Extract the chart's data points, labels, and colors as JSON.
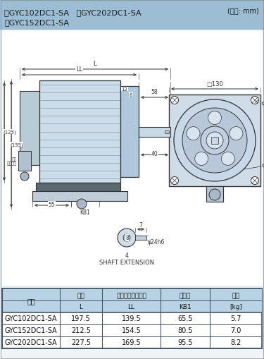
{
  "title_models_line1": "・GYC102DC1-SA   ・GYC202DC1-SA",
  "title_models_line2": "・GYC152DC1-SA",
  "unit_label": "(単位: mm)",
  "title_bg": "#9dbdd4",
  "header_bg": "#b8d4e4",
  "table_headers_row1": [
    "形式",
    "全長",
    "寸法（フランジ）",
    "端子部",
    "質量"
  ],
  "table_headers_row2": [
    "",
    "L",
    "LL",
    "KB1",
    "[kg]"
  ],
  "table_data": [
    [
      "GYC102DC1-SA",
      "197.5",
      "139.5",
      "65.5",
      "5.7"
    ],
    [
      "GYC152DC1-SA",
      "212.5",
      "154.5",
      "80.5",
      "7.0"
    ],
    [
      "GYC202DC1-SA",
      "227.5",
      "169.5",
      "95.5",
      "8.2"
    ]
  ]
}
